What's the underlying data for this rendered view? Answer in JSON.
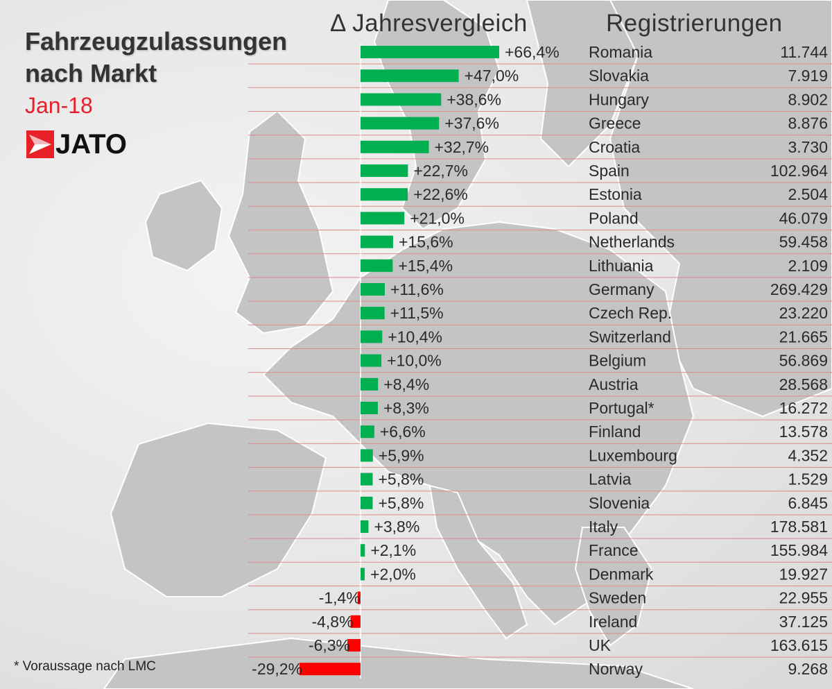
{
  "title": {
    "line1": "Fahrzeugzulassungen",
    "line2": "nach Markt"
  },
  "subtitle": "Jan-18",
  "logo": {
    "text": "JATO",
    "icon": "jato-arrow-icon",
    "icon_color": "#e8202a"
  },
  "headers": {
    "delta": "Δ Jahresvergleich",
    "registrations": "Registrierungen"
  },
  "footnote": "* Voraussage nach LMC",
  "colors": {
    "positive": "#00b050",
    "negative": "#ff0000",
    "row_line": "#d98a8a",
    "subtitle": "#e8202a"
  },
  "chart_data": {
    "type": "bar",
    "orientation": "horizontal",
    "xlim": [
      -29.2,
      66.4
    ],
    "unit": "%",
    "series": [
      {
        "name": "Δ Jahresvergleich",
        "values": [
          66.4,
          47.0,
          38.6,
          37.6,
          32.7,
          22.7,
          22.6,
          21.0,
          15.6,
          15.4,
          11.6,
          11.5,
          10.4,
          10.0,
          8.4,
          8.3,
          6.6,
          5.9,
          5.8,
          5.8,
          3.8,
          2.1,
          2.0,
          -1.4,
          -4.8,
          -6.3,
          -29.2
        ]
      }
    ],
    "categories": [
      "Romania",
      "Slovakia",
      "Hungary",
      "Greece",
      "Croatia",
      "Spain",
      "Estonia",
      "Poland",
      "Netherlands",
      "Lithuania",
      "Germany",
      "Czech Rep.",
      "Switzerland",
      "Belgium",
      "Austria",
      "Portugal*",
      "Finland",
      "Luxembourg",
      "Latvia",
      "Slovenia",
      "Italy",
      "France",
      "Denmark",
      "Sweden",
      "Ireland",
      "UK",
      "Norway"
    ],
    "rows": [
      {
        "country": "Romania",
        "change": 66.4,
        "change_label": "+66,4%",
        "registrations": "11.744"
      },
      {
        "country": "Slovakia",
        "change": 47.0,
        "change_label": "+47,0%",
        "registrations": "7.919"
      },
      {
        "country": "Hungary",
        "change": 38.6,
        "change_label": "+38,6%",
        "registrations": "8.902"
      },
      {
        "country": "Greece",
        "change": 37.6,
        "change_label": "+37,6%",
        "registrations": "8.876"
      },
      {
        "country": "Croatia",
        "change": 32.7,
        "change_label": "+32,7%",
        "registrations": "3.730"
      },
      {
        "country": "Spain",
        "change": 22.7,
        "change_label": "+22,7%",
        "registrations": "102.964"
      },
      {
        "country": "Estonia",
        "change": 22.6,
        "change_label": "+22,6%",
        "registrations": "2.504"
      },
      {
        "country": "Poland",
        "change": 21.0,
        "change_label": "+21,0%",
        "registrations": "46.079"
      },
      {
        "country": "Netherlands",
        "change": 15.6,
        "change_label": "+15,6%",
        "registrations": "59.458"
      },
      {
        "country": "Lithuania",
        "change": 15.4,
        "change_label": "+15,4%",
        "registrations": "2.109"
      },
      {
        "country": "Germany",
        "change": 11.6,
        "change_label": "+11,6%",
        "registrations": "269.429"
      },
      {
        "country": "Czech Rep.",
        "change": 11.5,
        "change_label": "+11,5%",
        "registrations": "23.220"
      },
      {
        "country": "Switzerland",
        "change": 10.4,
        "change_label": "+10,4%",
        "registrations": "21.665"
      },
      {
        "country": "Belgium",
        "change": 10.0,
        "change_label": "+10,0%",
        "registrations": "56.869"
      },
      {
        "country": "Austria",
        "change": 8.4,
        "change_label": "+8,4%",
        "registrations": "28.568"
      },
      {
        "country": "Portugal*",
        "change": 8.3,
        "change_label": "+8,3%",
        "registrations": "16.272"
      },
      {
        "country": "Finland",
        "change": 6.6,
        "change_label": "+6,6%",
        "registrations": "13.578"
      },
      {
        "country": "Luxembourg",
        "change": 5.9,
        "change_label": "+5,9%",
        "registrations": "4.352"
      },
      {
        "country": "Latvia",
        "change": 5.8,
        "change_label": "+5,8%",
        "registrations": "1.529"
      },
      {
        "country": "Slovenia",
        "change": 5.8,
        "change_label": "+5,8%",
        "registrations": "6.845"
      },
      {
        "country": "Italy",
        "change": 3.8,
        "change_label": "+3,8%",
        "registrations": "178.581"
      },
      {
        "country": "France",
        "change": 2.1,
        "change_label": "+2,1%",
        "registrations": "155.984"
      },
      {
        "country": "Denmark",
        "change": 2.0,
        "change_label": "+2,0%",
        "registrations": "19.927"
      },
      {
        "country": "Sweden",
        "change": -1.4,
        "change_label": "-1,4%",
        "registrations": "22.955"
      },
      {
        "country": "Ireland",
        "change": -4.8,
        "change_label": "-4,8%",
        "registrations": "37.125"
      },
      {
        "country": "UK",
        "change": -6.3,
        "change_label": "-6,3%",
        "registrations": "163.615"
      },
      {
        "country": "Norway",
        "change": -29.2,
        "change_label": "-29,2%",
        "registrations": "9.268"
      }
    ]
  }
}
